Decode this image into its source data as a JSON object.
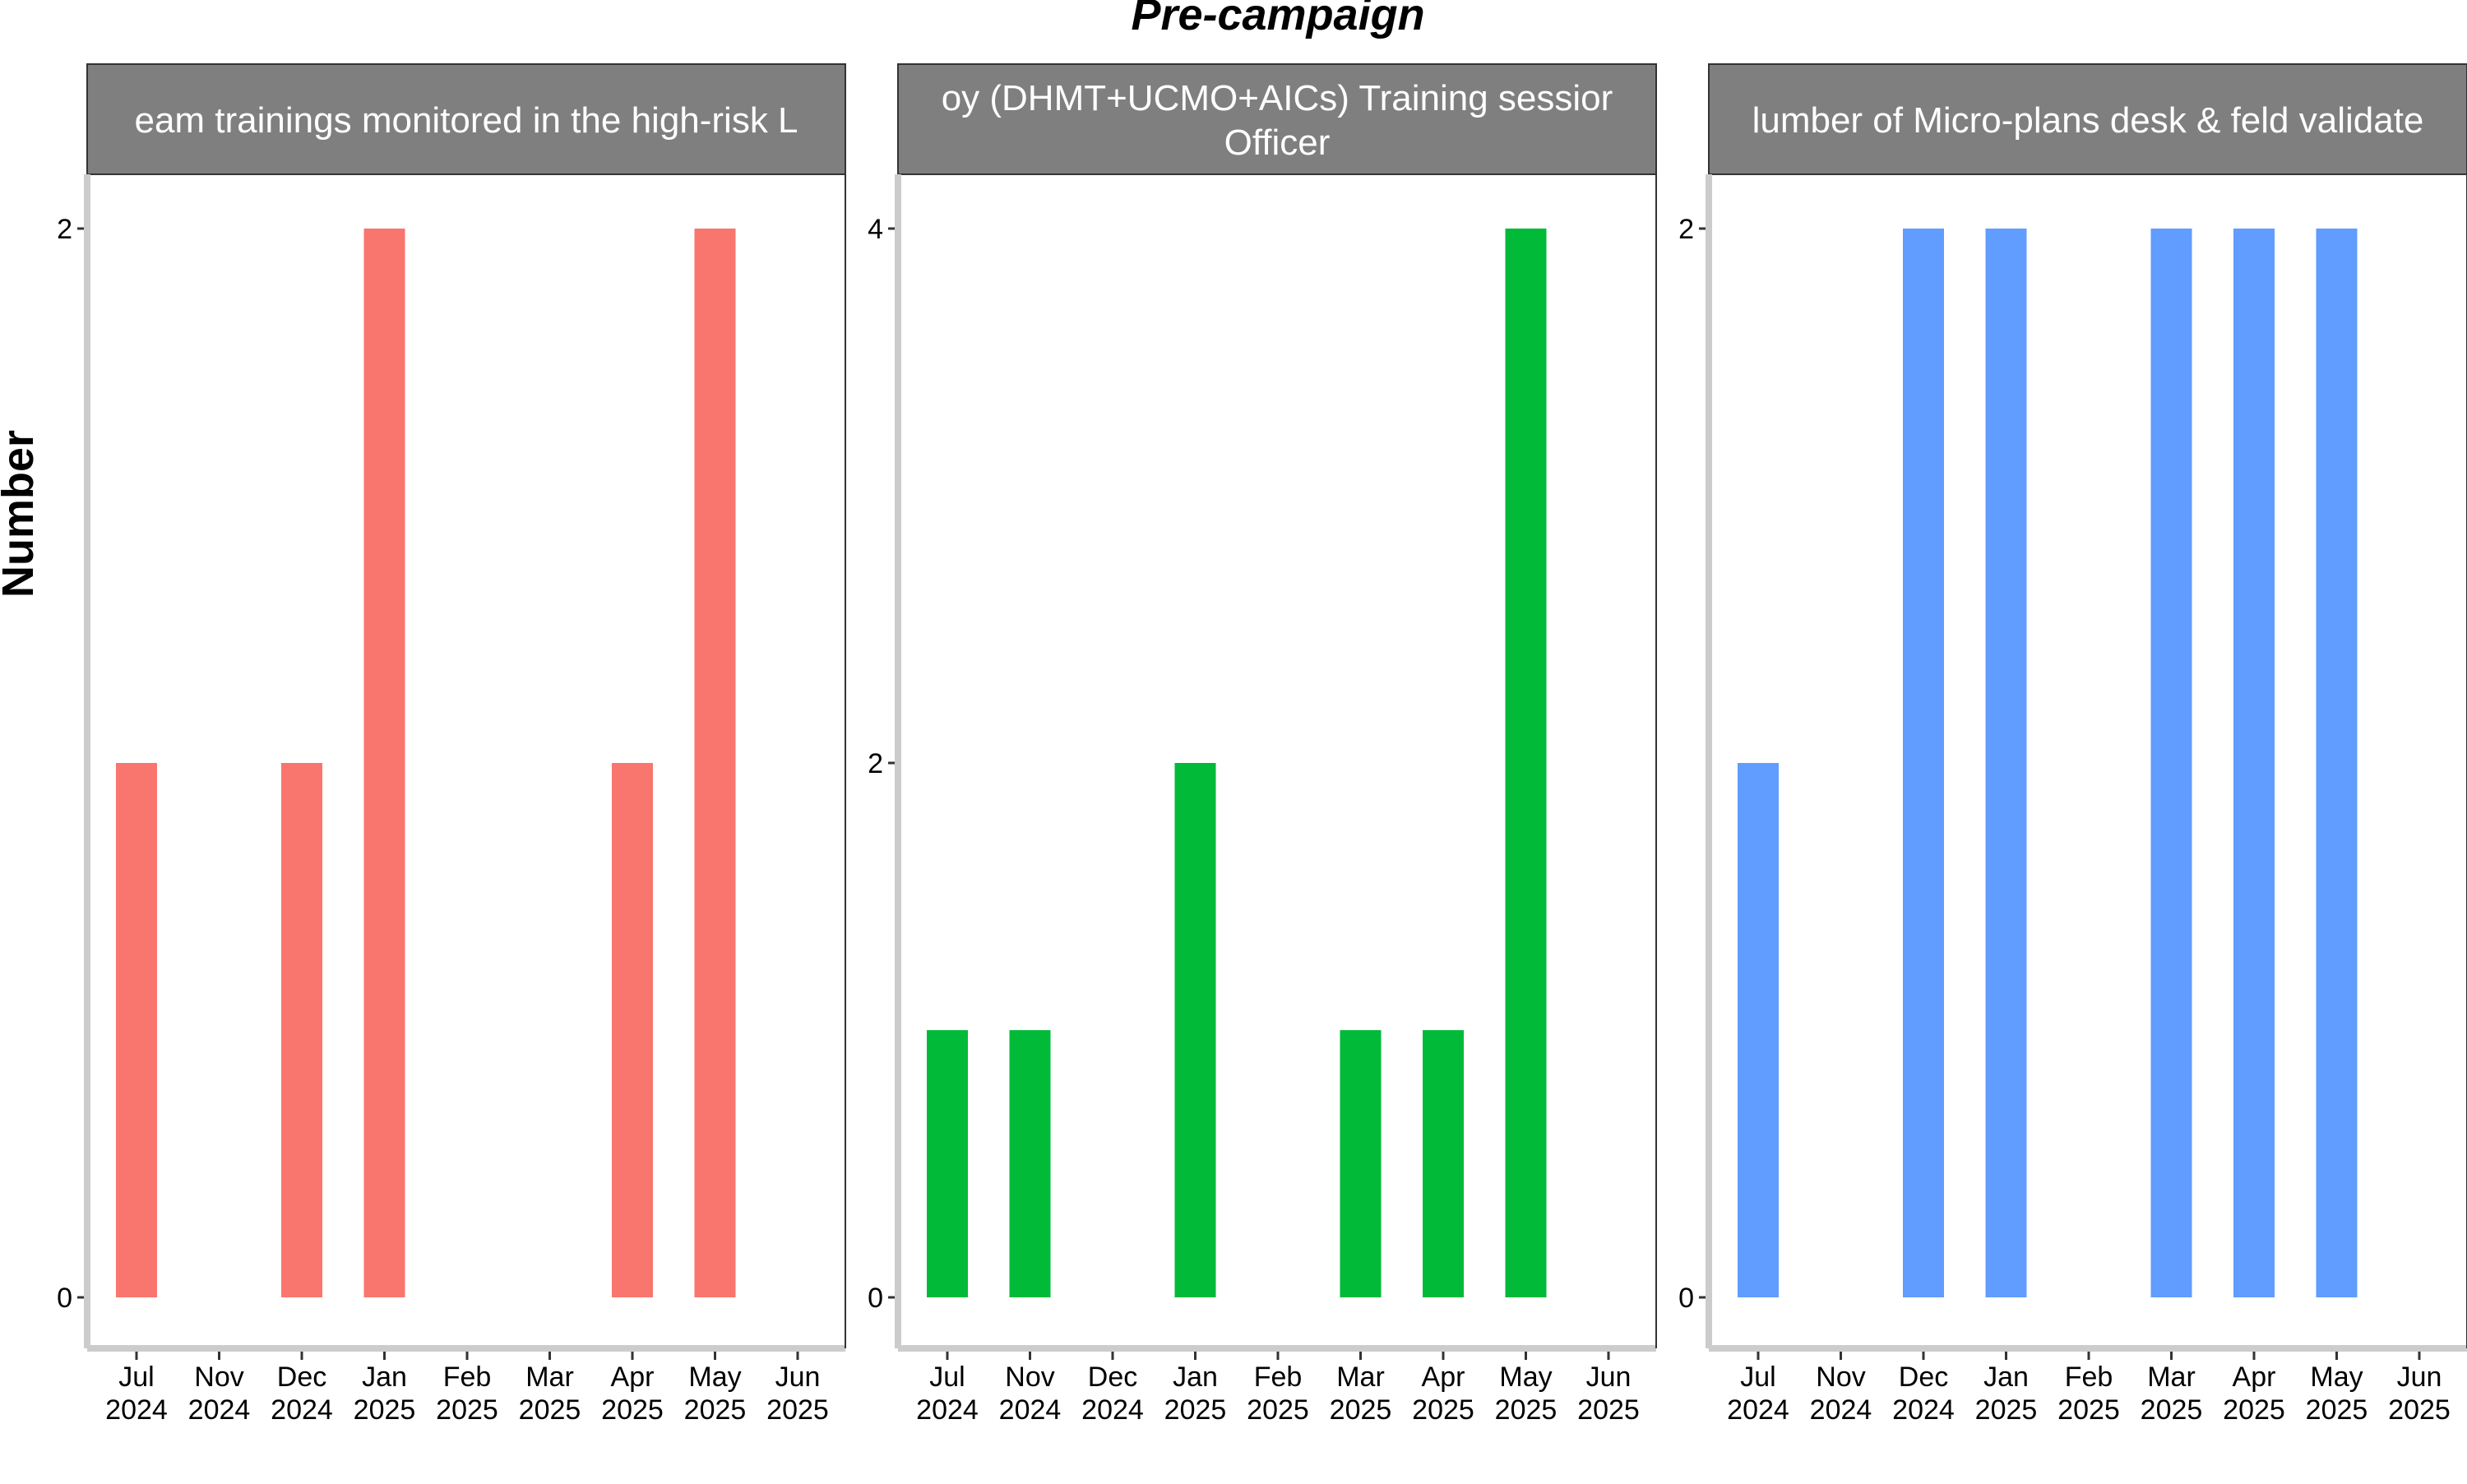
{
  "chart_data": {
    "type": "bar",
    "title": "Pre-campaign",
    "ylabel": "Number",
    "xlabel": "",
    "grid": false,
    "legend": "none",
    "x_ticks": [
      "Jul 2024",
      "Nov 2024",
      "Dec 2024",
      "Jan 2025",
      "Feb 2025",
      "Mar 2025",
      "Apr 2025",
      "May 2025",
      "Jun 2025"
    ],
    "panels": [
      {
        "strip_lines": [
          "eam trainings monitored in the high-risk L"
        ],
        "color": "#F8766D",
        "ylim": [
          0,
          2
        ],
        "y_ticks": [
          0,
          2
        ],
        "values": [
          1,
          0,
          1,
          2,
          0,
          0,
          1,
          2,
          0
        ]
      },
      {
        "strip_lines": [
          "oy (DHMT+UCMO+AICs) Training sessior",
          "Officer"
        ],
        "color": "#00BA38",
        "ylim": [
          0,
          4
        ],
        "y_ticks": [
          0,
          2,
          4
        ],
        "values": [
          1,
          1,
          0,
          2,
          0,
          1,
          1,
          4,
          0
        ]
      },
      {
        "strip_lines": [
          "lumber of Micro-plans desk & feld validate"
        ],
        "color": "#619CFF",
        "ylim": [
          0,
          2
        ],
        "y_ticks": [
          0,
          2
        ],
        "values": [
          1,
          0,
          2,
          2,
          0,
          2,
          2,
          2,
          0
        ]
      }
    ]
  }
}
